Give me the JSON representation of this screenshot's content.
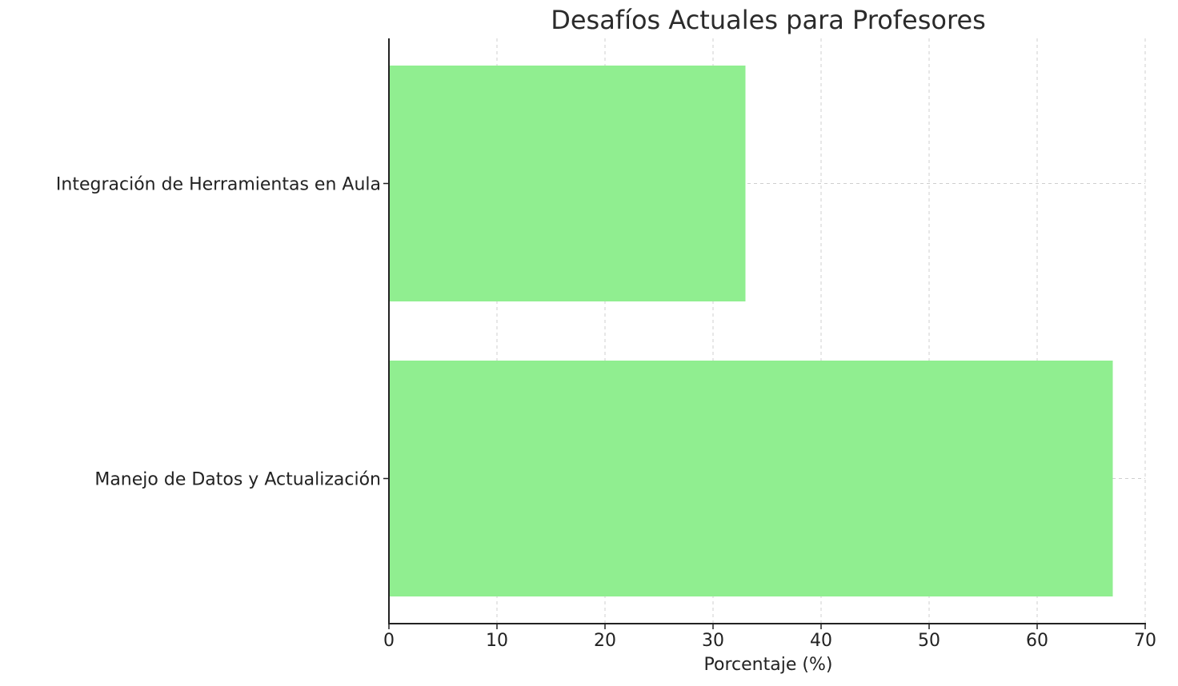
{
  "chart_data": {
    "type": "bar",
    "orientation": "horizontal",
    "title": "Desafíos Actuales para Profesores",
    "xlabel": "Porcentaje (%)",
    "ylabel": "",
    "categories": [
      "Manejo de Datos y Actualización",
      "Integración de Herramientas en Aula"
    ],
    "values": [
      67,
      33
    ],
    "xlim": [
      0,
      70
    ],
    "xticks": [
      "0",
      "10",
      "20",
      "30",
      "40",
      "50",
      "60",
      "70"
    ],
    "grid": true,
    "bar_color": "#90ee90"
  }
}
